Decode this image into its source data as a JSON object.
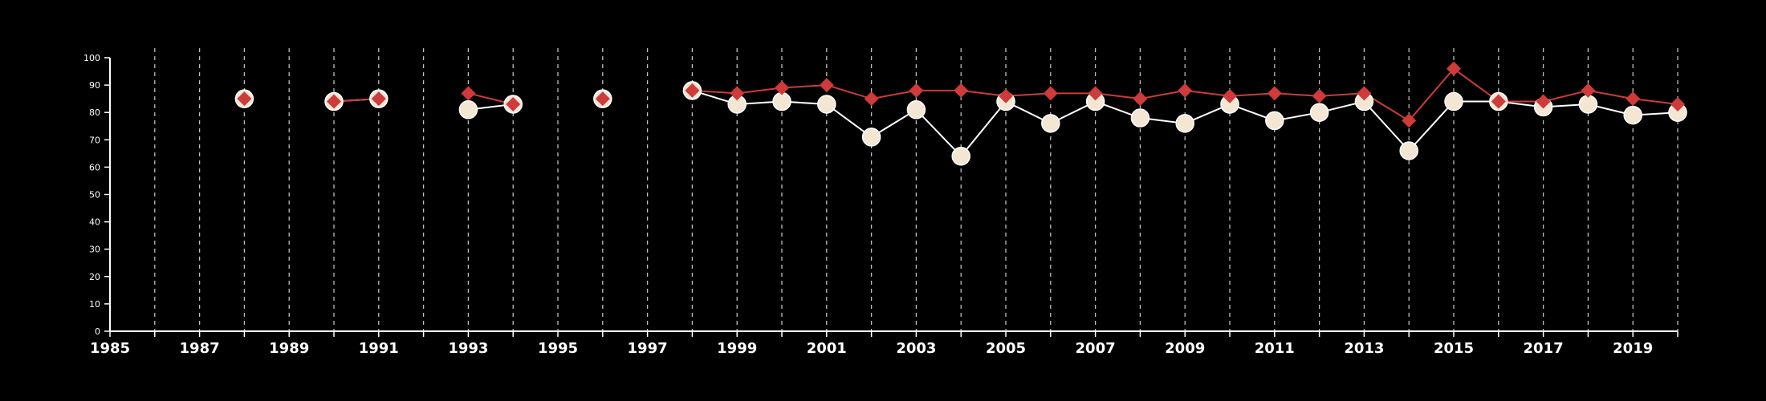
{
  "chart_data": {
    "type": "line",
    "title": "",
    "xlabel": "",
    "ylabel": "",
    "xlim": [
      1985,
      2020
    ],
    "ylim": [
      0,
      100
    ],
    "y_ticks": [
      0,
      10,
      20,
      30,
      40,
      50,
      60,
      70,
      80,
      90,
      100
    ],
    "x_ticks_labeled": [
      1985,
      1987,
      1989,
      1991,
      1993,
      1995,
      1997,
      1999,
      2001,
      2003,
      2005,
      2007,
      2009,
      2011,
      2013,
      2015,
      2017,
      2019
    ],
    "grid": "vertical dashed lines at every year",
    "legend": "none",
    "colors": {
      "background": "#000000",
      "axis": "#ffffff",
      "grid": "#bbbbbb",
      "series_white": "#ffffff",
      "series_white_marker": "#f3e6d3",
      "series_red": "#cf3a3a"
    },
    "series": [
      {
        "marker": "circle",
        "color": "#ffffff",
        "points": [
          [
            1988,
            85
          ],
          [
            1990,
            84
          ],
          [
            1991,
            85
          ],
          [
            1993,
            81
          ],
          [
            1994,
            83
          ],
          [
            1996,
            85
          ],
          [
            1998,
            88
          ],
          [
            1999,
            83
          ],
          [
            2000,
            84
          ],
          [
            2001,
            83
          ],
          [
            2002,
            71
          ],
          [
            2003,
            81
          ],
          [
            2004,
            64
          ],
          [
            2005,
            84
          ],
          [
            2006,
            76
          ],
          [
            2007,
            84
          ],
          [
            2008,
            78
          ],
          [
            2009,
            76
          ],
          [
            2010,
            83
          ],
          [
            2011,
            77
          ],
          [
            2012,
            80
          ],
          [
            2013,
            84
          ],
          [
            2014,
            66
          ],
          [
            2015,
            84
          ],
          [
            2016,
            84
          ],
          [
            2017,
            82
          ],
          [
            2018,
            83
          ],
          [
            2019,
            79
          ],
          [
            2020,
            80
          ]
        ]
      },
      {
        "marker": "diamond",
        "color": "#cf3a3a",
        "points": [
          [
            1988,
            85
          ],
          [
            1990,
            84
          ],
          [
            1991,
            85
          ],
          [
            1993,
            87
          ],
          [
            1994,
            83
          ],
          [
            1996,
            85
          ],
          [
            1998,
            88
          ],
          [
            1999,
            87
          ],
          [
            2000,
            89
          ],
          [
            2001,
            90
          ],
          [
            2002,
            85
          ],
          [
            2003,
            88
          ],
          [
            2004,
            88
          ],
          [
            2005,
            86
          ],
          [
            2006,
            87
          ],
          [
            2007,
            87
          ],
          [
            2008,
            85
          ],
          [
            2009,
            88
          ],
          [
            2010,
            86
          ],
          [
            2011,
            87
          ],
          [
            2012,
            86
          ],
          [
            2013,
            87
          ],
          [
            2014,
            77
          ],
          [
            2015,
            96
          ],
          [
            2016,
            84
          ],
          [
            2017,
            84
          ],
          [
            2018,
            88
          ],
          [
            2019,
            85
          ],
          [
            2020,
            83
          ]
        ]
      }
    ]
  }
}
